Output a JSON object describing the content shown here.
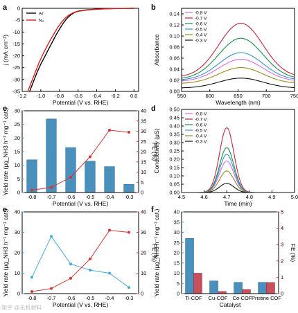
{
  "colors": {
    "bar_blue": "#4a90bd",
    "bar_red": "#c8505c",
    "line_blue": "#4aa8d8",
    "line_red": "#d43535",
    "axis_blue": "#3a9ad9",
    "axis_red": "#d42e2e",
    "ar": "#000000",
    "n2": "#e31a1c"
  },
  "panels": {
    "a": {
      "label": "a"
    },
    "b": {
      "label": "b"
    },
    "c": {
      "label": "c"
    },
    "d": {
      "label": "d"
    },
    "e": {
      "label": "e"
    },
    "f": {
      "label": "f"
    }
  },
  "watermark": "知乎 @无机材料",
  "chart_data": [
    {
      "panel": "a",
      "type": "line",
      "xlabel": "Potential (V vs. RHE)",
      "ylabel": "j (mA·cm⁻²)",
      "xlim": [
        -1.2,
        0.05
      ],
      "ylim": [
        -35,
        0
      ],
      "xticks": [
        -1.2,
        -1.0,
        -0.8,
        -0.6,
        -0.4,
        -0.2,
        0.0
      ],
      "xtick_labels": [
        "-1.2",
        "-1.0",
        "-0.8",
        "-0.6",
        "-0.4",
        "-0.2",
        "0.0"
      ],
      "yticks": [
        0,
        -5,
        -10,
        -15,
        -20,
        -25,
        -30,
        -35
      ],
      "ytick_labels": [
        "0",
        "-5",
        "-10",
        "-15",
        "-20",
        "-25",
        "-30",
        "-35"
      ],
      "legend": "top-left",
      "series": [
        {
          "name": "Ar",
          "color": "#000000",
          "x": [
            -1.12,
            -1.08,
            -1.04,
            -1.0,
            -0.96,
            -0.92,
            -0.88,
            -0.84,
            -0.8,
            -0.76,
            -0.72,
            -0.68,
            -0.64,
            -0.6,
            -0.5,
            -0.4,
            -0.3,
            -0.2,
            -0.1,
            0.0
          ],
          "y": [
            -35,
            -31,
            -27,
            -23.5,
            -20.5,
            -17.5,
            -14.5,
            -11.5,
            -8.8,
            -6.3,
            -4.3,
            -2.8,
            -1.8,
            -1.2,
            -0.6,
            -0.35,
            -0.2,
            -0.1,
            -0.05,
            0
          ]
        },
        {
          "name": "N₂",
          "color": "#e31a1c",
          "x": [
            -1.14,
            -1.1,
            -1.06,
            -1.02,
            -0.98,
            -0.94,
            -0.9,
            -0.86,
            -0.82,
            -0.78,
            -0.74,
            -0.7,
            -0.66,
            -0.62,
            -0.5,
            -0.4,
            -0.3,
            -0.2,
            -0.1,
            0.0
          ],
          "y": [
            -35,
            -31,
            -27,
            -23,
            -19.5,
            -16.5,
            -13.5,
            -10.8,
            -8.2,
            -6.0,
            -4.2,
            -2.9,
            -2.0,
            -1.4,
            -0.7,
            -0.4,
            -0.2,
            -0.1,
            -0.05,
            0
          ]
        }
      ]
    },
    {
      "panel": "b",
      "type": "line",
      "xlabel": "Wavelength (nm)",
      "ylabel": "Absorbance",
      "xlim": [
        550,
        750
      ],
      "ylim": [
        0.0,
        0.15
      ],
      "xticks": [
        550,
        600,
        650,
        700,
        750
      ],
      "yticks": [
        0.0,
        0.02,
        0.04,
        0.06,
        0.08,
        0.1,
        0.12,
        0.14
      ],
      "ytick_labels": [
        "0.00",
        "0.02",
        "0.04",
        "0.06",
        "0.08",
        "0.10",
        "0.12",
        "0.14"
      ],
      "legend": "top-left",
      "peak_x": 655,
      "width_nm": 55,
      "series": [
        {
          "name": "-0.8 V",
          "color": "#d36ce0",
          "base": 0.018,
          "peak": 0.058
        },
        {
          "name": "-0.7 V",
          "color": "#c0263a",
          "base": 0.025,
          "peak": 0.123
        },
        {
          "name": "-0.6 V",
          "color": "#1f8a4c",
          "base": 0.022,
          "peak": 0.096
        },
        {
          "name": "-0.5 V",
          "color": "#3a8fd0",
          "base": 0.02,
          "peak": 0.07
        },
        {
          "name": "-0.4 V",
          "color": "#9a8a1e",
          "base": 0.014,
          "peak": 0.043
        },
        {
          "name": "-0.3 V",
          "color": "#111111",
          "base": 0.006,
          "peak": 0.024
        }
      ]
    },
    {
      "panel": "c",
      "type": "bar",
      "xlabel": "Potential (V vs. RHE)",
      "ylabel": "Yield rate (μg_NH3 h⁻¹ mg⁻¹ cat.)",
      "y2label": "FE (%)",
      "categories": [
        "-0.8",
        "-0.7",
        "-0.6",
        "-0.5",
        "-0.4",
        "-0.3"
      ],
      "ylim": [
        0,
        30
      ],
      "yticks": [
        0,
        5,
        10,
        15,
        20,
        25,
        30
      ],
      "y2lim": [
        0,
        40
      ],
      "y2ticks": [
        0,
        5,
        10,
        15,
        20,
        25,
        30,
        35,
        40
      ],
      "series": [
        {
          "name": "Yield rate",
          "kind": "bar",
          "axis": "left",
          "values": [
            12,
            27,
            16.5,
            11.5,
            9.5,
            3
          ]
        },
        {
          "name": "FE",
          "kind": "line",
          "axis": "right",
          "values": [
            1.2,
            2.5,
            7.5,
            17.5,
            30.5,
            29.5
          ]
        }
      ]
    },
    {
      "panel": "d",
      "type": "line",
      "xlabel": "Time (min)",
      "ylabel": "Conductivity (μS)",
      "xlim": [
        4.5,
        5.0
      ],
      "ylim": [
        0,
        0.5
      ],
      "xticks": [
        4.5,
        4.6,
        4.7,
        4.8,
        4.9,
        5.0
      ],
      "xtick_labels": [
        "4.5",
        "4.6",
        "4.7",
        "4.8",
        "4.9",
        "5.0"
      ],
      "yticks": [
        0.0,
        0.05,
        0.1,
        0.15,
        0.2,
        0.25,
        0.3,
        0.35,
        0.4,
        0.45,
        0.5
      ],
      "ytick_labels": [
        "0.00",
        "0.05",
        "0.10",
        "0.15",
        "0.20",
        "0.25",
        "0.30",
        "0.35",
        "0.40",
        "0.45",
        "0.50"
      ],
      "legend": "top-left",
      "peak_x": 4.7,
      "series": [
        {
          "name": "-0.8 V",
          "color": "#d36ce0",
          "peak": 0.19
        },
        {
          "name": "-0.7 V",
          "color": "#c0263a",
          "peak": 0.39
        },
        {
          "name": "-0.6 V",
          "color": "#1f8a4c",
          "peak": 0.27
        },
        {
          "name": "-0.5 V",
          "color": "#3a8fd0",
          "peak": 0.23
        },
        {
          "name": "-0.4 V",
          "color": "#9a8a1e",
          "peak": 0.13
        },
        {
          "name": "-0.3 V",
          "color": "#111111",
          "peak": 0.055
        }
      ]
    },
    {
      "panel": "e",
      "type": "line",
      "xlabel": "Potential (V vs. RHE)",
      "ylabel": "Yield rate (μg_NH3 h⁻¹ mg⁻¹ cat.)",
      "y2label": "FE (%)",
      "x": [
        "-0.8",
        "-0.7",
        "-0.6",
        "-0.5",
        "-0.4",
        "-0.3"
      ],
      "ylim": [
        0,
        40
      ],
      "yticks": [
        0,
        10,
        20,
        30,
        40
      ],
      "y2lim": [
        0,
        40
      ],
      "y2ticks": [
        0,
        10,
        20,
        30,
        40
      ],
      "series": [
        {
          "name": "Yield rate",
          "axis": "left",
          "values": [
            8,
            28,
            14.5,
            11.5,
            10,
            3
          ]
        },
        {
          "name": "FE",
          "axis": "right",
          "values": [
            1,
            2.5,
            7.5,
            17,
            31,
            30
          ]
        }
      ]
    },
    {
      "panel": "f",
      "type": "bar",
      "xlabel": "Catalyst",
      "ylabel": "Yield rate (μg_NH3 h⁻¹ mg⁻¹ cat.)",
      "y2label": "FE (%)",
      "categories": [
        "Ti-COF",
        "Cu-COF",
        "Co-COF",
        "Pristine COF"
      ],
      "ylim": [
        0,
        40
      ],
      "yticks": [
        0,
        5,
        10,
        15,
        20,
        25,
        30,
        35,
        40
      ],
      "y2lim": [
        0,
        5
      ],
      "y2ticks": [
        0,
        1,
        2,
        3,
        4,
        5
      ],
      "series": [
        {
          "name": "Yield rate",
          "axis": "left",
          "values": [
            27,
            6.2,
            5.5,
            5.5
          ]
        },
        {
          "name": "FE",
          "axis": "right",
          "values": [
            1.25,
            0.13,
            0.25,
            0.68
          ]
        }
      ]
    }
  ]
}
